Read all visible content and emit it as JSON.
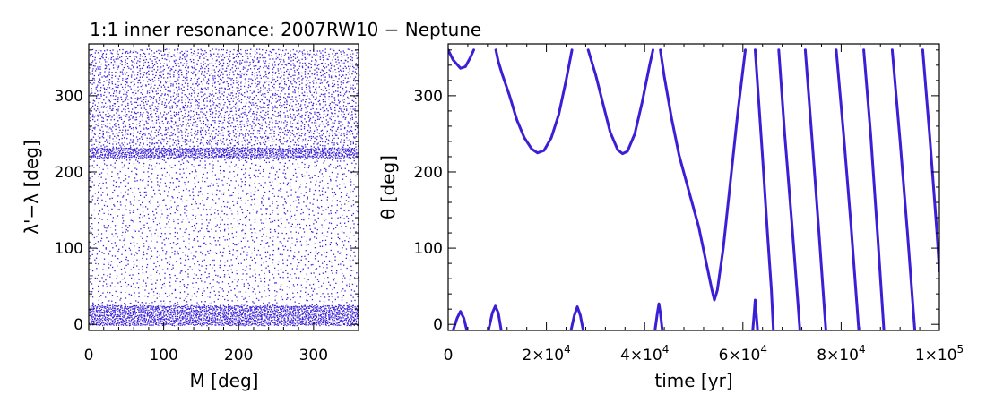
{
  "title": "1:1 inner resonance: 2007RW10 − Neptune",
  "colors": {
    "data": "#3a1fd6",
    "axes": "#000000"
  },
  "chart_data": [
    {
      "type": "scatter",
      "xlabel": "M [deg]",
      "ylabel": "λ'−λ [deg]",
      "xlim": [
        0,
        360
      ],
      "ylim": [
        -8,
        368
      ],
      "xticks": [
        {
          "v": 0,
          "label": "0"
        },
        {
          "v": 100,
          "label": "100"
        },
        {
          "v": 200,
          "label": "200"
        },
        {
          "v": 300,
          "label": "300"
        }
      ],
      "yticks": [
        {
          "v": 0,
          "label": "0"
        },
        {
          "v": 100,
          "label": "100"
        },
        {
          "v": 200,
          "label": "200"
        },
        {
          "v": 300,
          "label": "300"
        }
      ],
      "density_bands": [
        {
          "y_range": [
            0,
            25
          ],
          "density": "very high"
        },
        {
          "y_range": [
            25,
            220
          ],
          "density": "moderate"
        },
        {
          "y_range": [
            220,
            232
          ],
          "density": "very high"
        },
        {
          "y_range": [
            232,
            360
          ],
          "density": "high"
        }
      ],
      "grid": false
    },
    {
      "type": "line",
      "xlabel": "time [yr]",
      "ylabel": "θ [deg]",
      "xlim": [
        0,
        100000
      ],
      "ylim": [
        -8,
        368
      ],
      "xticks": [
        {
          "v": 0,
          "label": "0"
        },
        {
          "v": 20000,
          "mant": "2",
          "exp": "4"
        },
        {
          "v": 40000,
          "mant": "4",
          "exp": "4"
        },
        {
          "v": 60000,
          "mant": "6",
          "exp": "4"
        },
        {
          "v": 80000,
          "mant": "8",
          "exp": "4"
        },
        {
          "v": 100000,
          "mant": "1",
          "exp": "5"
        }
      ],
      "yticks": [
        {
          "v": 0,
          "label": "0"
        },
        {
          "v": 100,
          "label": "100"
        },
        {
          "v": 200,
          "label": "200"
        },
        {
          "v": 300,
          "label": "300"
        }
      ],
      "segments": [
        [
          [
            0,
            360
          ],
          [
            1000,
            347
          ],
          [
            2500,
            336
          ],
          [
            3500,
            338
          ],
          [
            4500,
            350
          ],
          [
            5200,
            360
          ]
        ],
        [
          [
            9700,
            360
          ],
          [
            10200,
            345
          ],
          [
            11000,
            328
          ],
          [
            12500,
            300
          ],
          [
            14000,
            268
          ],
          [
            15500,
            245
          ],
          [
            17000,
            230
          ],
          [
            18200,
            225
          ],
          [
            19500,
            228
          ],
          [
            21000,
            245
          ],
          [
            22500,
            275
          ],
          [
            24000,
            320
          ],
          [
            25200,
            360
          ]
        ],
        [
          [
            28500,
            360
          ],
          [
            30000,
            328
          ],
          [
            31500,
            290
          ],
          [
            33000,
            252
          ],
          [
            34500,
            229
          ],
          [
            35500,
            224
          ],
          [
            36500,
            227
          ],
          [
            38000,
            250
          ],
          [
            39500,
            292
          ],
          [
            41000,
            340
          ],
          [
            41700,
            360
          ]
        ],
        [
          [
            43200,
            360
          ],
          [
            44000,
            325
          ],
          [
            45500,
            270
          ],
          [
            47000,
            222
          ],
          [
            49000,
            175
          ],
          [
            51000,
            128
          ],
          [
            52500,
            82
          ],
          [
            53700,
            45
          ],
          [
            54200,
            32
          ],
          [
            54800,
            45
          ],
          [
            56000,
            100
          ],
          [
            57500,
            190
          ],
          [
            59000,
            280
          ],
          [
            60500,
            360
          ]
        ],
        [
          [
            62500,
            360
          ],
          [
            64000,
            220
          ],
          [
            65000,
            120
          ],
          [
            65800,
            45
          ],
          [
            66200,
            -8
          ]
        ],
        [
          [
            67300,
            360
          ],
          [
            68500,
            250
          ],
          [
            70000,
            130
          ],
          [
            71300,
            20
          ],
          [
            71600,
            -8
          ]
        ],
        [
          [
            72700,
            360
          ],
          [
            74000,
            250
          ],
          [
            75500,
            120
          ],
          [
            76900,
            -8
          ]
        ],
        [
          [
            79000,
            360
          ],
          [
            80500,
            250
          ],
          [
            82000,
            130
          ],
          [
            83600,
            -8
          ]
        ],
        [
          [
            84600,
            360
          ],
          [
            86000,
            250
          ],
          [
            87500,
            110
          ],
          [
            88700,
            -8
          ]
        ],
        [
          [
            90400,
            360
          ],
          [
            92000,
            240
          ],
          [
            93500,
            120
          ],
          [
            95000,
            -8
          ]
        ],
        [
          [
            96600,
            360
          ],
          [
            98000,
            250
          ],
          [
            99500,
            120
          ],
          [
            100000,
            70
          ]
        ],
        [
          [
            1000,
            -8
          ],
          [
            1800,
            8
          ],
          [
            2500,
            17
          ],
          [
            3200,
            8
          ],
          [
            3800,
            -8
          ]
        ],
        [
          [
            8200,
            -8
          ],
          [
            9000,
            15
          ],
          [
            9600,
            24
          ],
          [
            10200,
            15
          ],
          [
            10800,
            -8
          ]
        ],
        [
          [
            25000,
            -8
          ],
          [
            25700,
            12
          ],
          [
            26300,
            23
          ],
          [
            26900,
            12
          ],
          [
            27500,
            -8
          ]
        ],
        [
          [
            42100,
            -8
          ],
          [
            42600,
            15
          ],
          [
            42900,
            27
          ],
          [
            43200,
            15
          ],
          [
            43600,
            -8
          ]
        ],
        [
          [
            62000,
            -8
          ],
          [
            62300,
            15
          ],
          [
            62500,
            32
          ],
          [
            62700,
            15
          ],
          [
            63000,
            -8
          ]
        ]
      ],
      "grid": false
    }
  ]
}
